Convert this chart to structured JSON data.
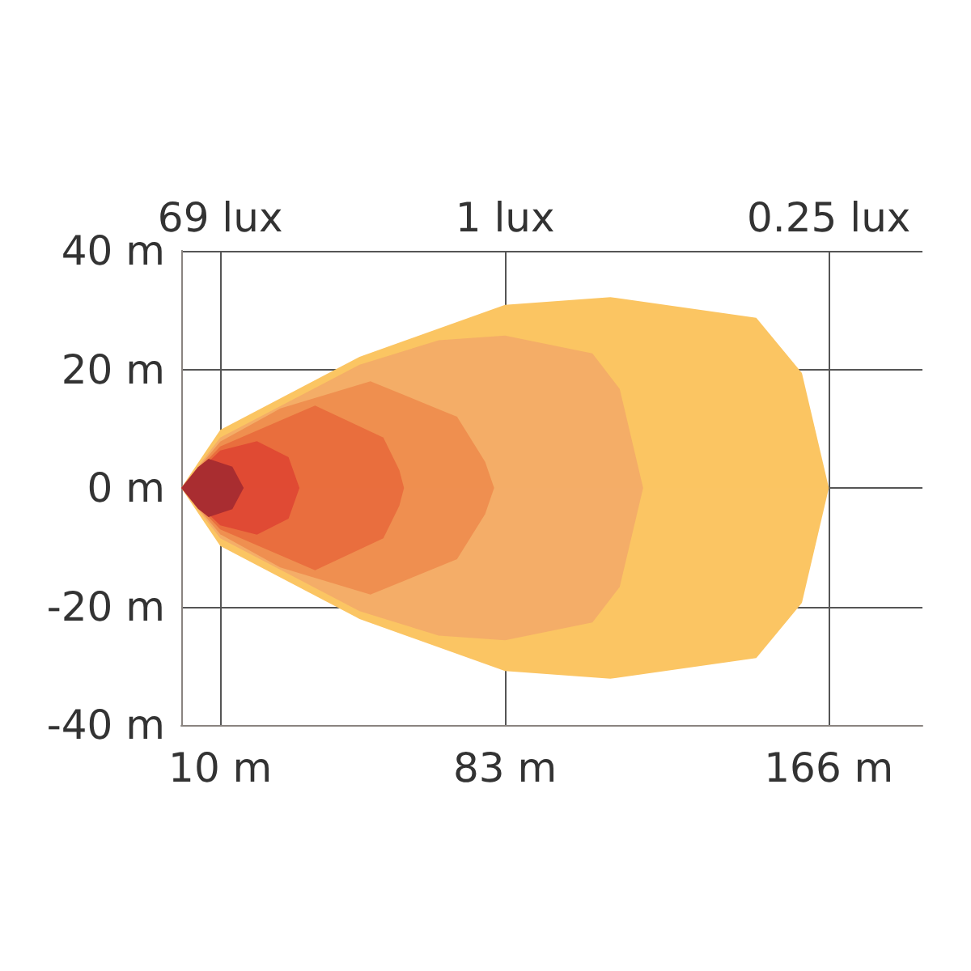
{
  "chart_data": {
    "type": "area",
    "xlim": [
      0,
      190
    ],
    "xticks": [
      {
        "value": 10,
        "label": "10 m"
      },
      {
        "value": 83,
        "label": "83 m"
      },
      {
        "value": 166,
        "label": "166 m"
      }
    ],
    "annotations": [
      "69 lux",
      "1 lux",
      "0.25 lux"
    ],
    "ylim": [
      -40,
      40
    ],
    "yticks": [
      {
        "value": -40,
        "label": "-40 m"
      },
      {
        "value": -20,
        "label": "-20 m"
      },
      {
        "value": 0,
        "label": "0 m"
      },
      {
        "value": 20,
        "label": "20 m"
      },
      {
        "value": 40,
        "label": "40 m"
      }
    ],
    "grid": true,
    "series": [
      {
        "color": "#fbc562",
        "x": [
          0,
          10,
          45.7,
          83,
          110,
          147.4,
          159.1,
          166
        ],
        "values": [
          0,
          9.8,
          22.1,
          30.9,
          32.2,
          28.7,
          19.4,
          0
        ]
      },
      {
        "color": "#fbc563",
        "x": [
          0,
          10,
          45.7,
          83,
          110,
          147.4,
          159.1,
          166
        ],
        "values": [
          0,
          -9.8,
          -22.1,
          -30.9,
          -32.2,
          -28.7,
          -19.4,
          0
        ]
      },
      {
        "color": "#f4ad67",
        "x": [
          0,
          10,
          45.7,
          66,
          83,
          105.4,
          112.4,
          118.4
        ],
        "values": [
          0,
          8.5,
          20.8,
          24.9,
          25.7,
          22.7,
          16.7,
          0
        ]
      },
      {
        "color": "#f4ad68",
        "x": [
          0,
          10,
          45.7,
          66,
          83,
          105.4,
          112.4,
          118.4
        ],
        "values": [
          0,
          -8.5,
          -20.8,
          -24.9,
          -25.7,
          -22.7,
          -16.7,
          0
        ]
      },
      {
        "color": "#ef8f4f",
        "x": [
          0,
          10,
          25.4,
          48.5,
          70.7,
          77.9,
          80.2
        ],
        "values": [
          0,
          7.8,
          13.4,
          18,
          12,
          4.4,
          0
        ]
      },
      {
        "color": "#ef8f50",
        "x": [
          0,
          10,
          25.4,
          48.5,
          70.7,
          77.9,
          80.2
        ],
        "values": [
          0,
          -7.8,
          -13.4,
          -18,
          -12,
          -4.4,
          0
        ]
      },
      {
        "color": "#e96e3d",
        "x": [
          0,
          10,
          34.3,
          51.8,
          55.9,
          57.1
        ],
        "values": [
          0,
          7,
          13.9,
          8.5,
          3,
          0
        ]
      },
      {
        "color": "#e96e3e",
        "x": [
          0,
          10,
          34.3,
          51.8,
          55.9,
          57.1
        ],
        "values": [
          0,
          -7,
          -13.9,
          -8.5,
          -3,
          0
        ]
      },
      {
        "color": "#e04a33",
        "x": [
          0,
          10,
          19.4,
          27.5,
          30.3
        ],
        "values": [
          0,
          6.3,
          7.9,
          5.2,
          0
        ]
      },
      {
        "color": "#e04a34",
        "x": [
          0,
          10,
          19.4,
          27.5,
          30.3
        ],
        "values": [
          0,
          -6.3,
          -7.9,
          -5.2,
          0
        ]
      },
      {
        "color": "#a92d30",
        "x": [
          0,
          4.3,
          7,
          13.1,
          16
        ],
        "values": [
          0,
          3.5,
          4.9,
          3.6,
          0
        ]
      },
      {
        "color": "#a92d31",
        "x": [
          0,
          4.3,
          7,
          13.1,
          16
        ],
        "values": [
          0,
          -3.5,
          -4.9,
          -3.6,
          0
        ]
      }
    ]
  }
}
